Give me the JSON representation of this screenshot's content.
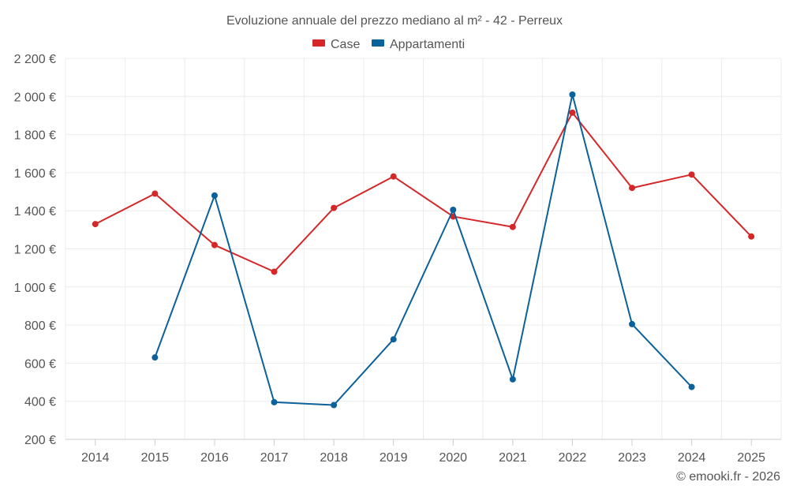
{
  "chart_data": {
    "type": "line",
    "title": "Evoluzione annuale del prezzo mediano al m² - 42 - Perreux",
    "categories": [
      "2014",
      "2015",
      "2016",
      "2017",
      "2018",
      "2019",
      "2020",
      "2021",
      "2022",
      "2023",
      "2024",
      "2025"
    ],
    "series": [
      {
        "name": "Case",
        "color": "#d62728",
        "values": [
          1330,
          1490,
          1220,
          1080,
          1415,
          1580,
          1370,
          1315,
          1915,
          1520,
          1590,
          1265
        ]
      },
      {
        "name": "Appartamenti",
        "color": "#0b6199",
        "values": [
          null,
          630,
          1480,
          395,
          380,
          725,
          1405,
          515,
          2010,
          805,
          475,
          null
        ]
      }
    ],
    "ylim": [
      200,
      2200
    ],
    "yticks": [
      200,
      400,
      600,
      800,
      1000,
      1200,
      1400,
      1600,
      1800,
      2000,
      2200
    ],
    "ytick_labels": [
      "200 €",
      "400 €",
      "600 €",
      "800 €",
      "1 000 €",
      "1 200 €",
      "1 400 €",
      "1 600 €",
      "1 800 €",
      "2 000 €",
      "2 200 €"
    ],
    "xlabel": "",
    "ylabel": "",
    "grid": true,
    "legend": "top-center"
  },
  "credit": "© emooki.fr - 2026"
}
